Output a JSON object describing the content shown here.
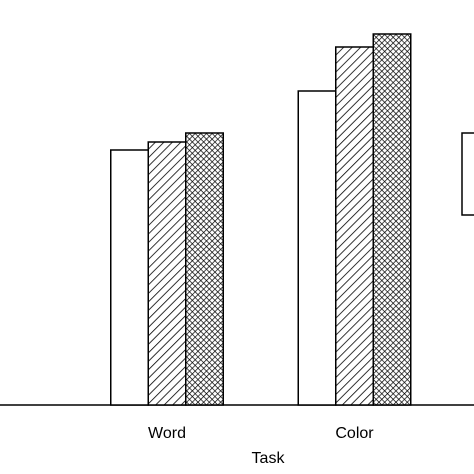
{
  "chart_data": {
    "type": "bar",
    "x_label": "Task",
    "categories": [
      "Word",
      "Color"
    ],
    "series": [
      {
        "pattern": "none",
        "values": [
          255,
          314
        ]
      },
      {
        "pattern": "hatch",
        "values": [
          263,
          358
        ]
      },
      {
        "pattern": "crosshatch",
        "values": [
          272,
          371
        ]
      }
    ]
  }
}
